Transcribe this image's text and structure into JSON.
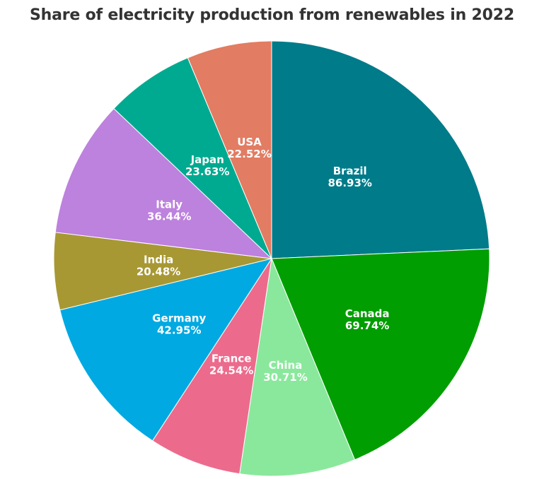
{
  "chart_data": {
    "type": "pie",
    "title": "Share of electricity production from renewables in 2022",
    "slices": [
      {
        "label": "Brazil",
        "value": 86.93,
        "display": "86.93%",
        "color": "#007b8a"
      },
      {
        "label": "Canada",
        "value": 69.74,
        "display": "69.74%",
        "color": "#009e00"
      },
      {
        "label": "China",
        "value": 30.71,
        "display": "30.71%",
        "color": "#8ae89c"
      },
      {
        "label": "France",
        "value": 24.54,
        "display": "24.54%",
        "color": "#ec6b8c"
      },
      {
        "label": "Germany",
        "value": 42.95,
        "display": "42.95%",
        "color": "#00a9e2"
      },
      {
        "label": "India",
        "value": 20.48,
        "display": "20.48%",
        "color": "#a89834"
      },
      {
        "label": "Italy",
        "value": 36.44,
        "display": "36.44%",
        "color": "#bd81de"
      },
      {
        "label": "Japan",
        "value": 23.63,
        "display": "23.63%",
        "color": "#00aa90"
      },
      {
        "label": "USA",
        "value": 22.52,
        "display": "22.52%",
        "color": "#e27c62"
      }
    ]
  }
}
